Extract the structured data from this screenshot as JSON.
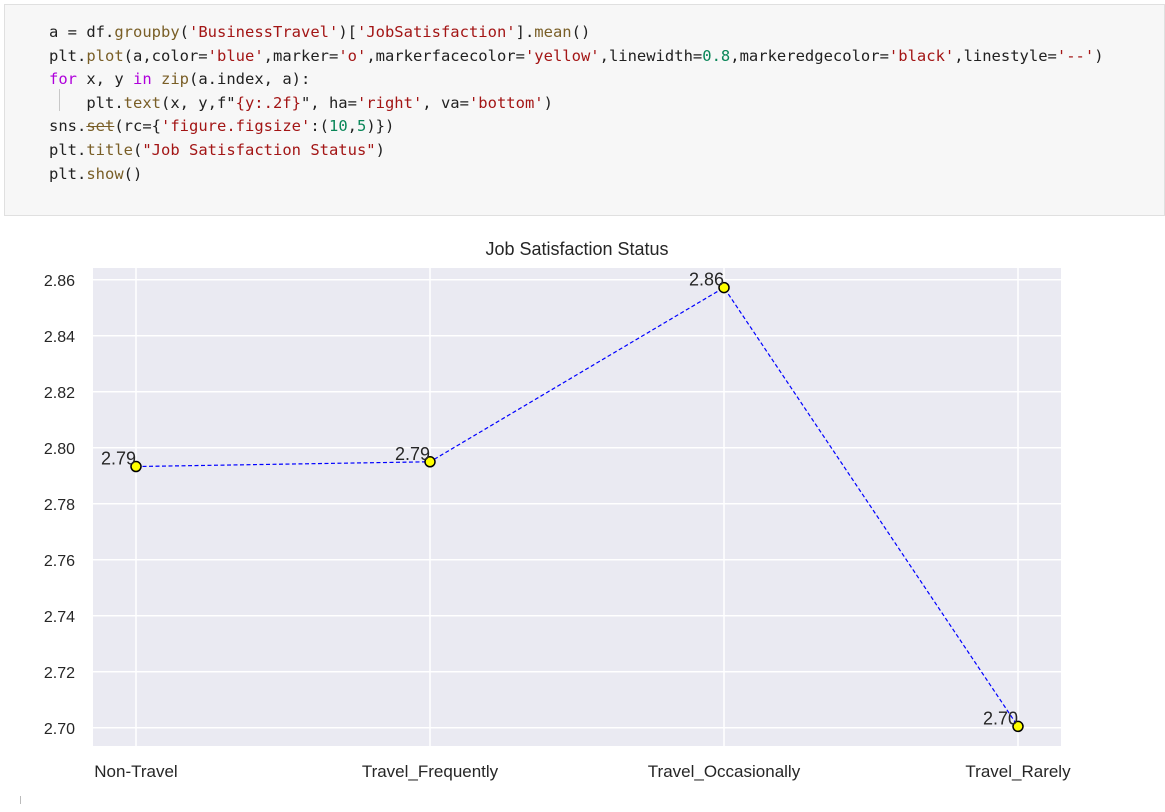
{
  "code_cell": {
    "lines": [
      [
        {
          "t": "a = df.",
          "c": ""
        },
        {
          "t": "groupby",
          "c": "fn"
        },
        {
          "t": "(",
          "c": ""
        },
        {
          "t": "'BusinessTravel'",
          "c": "str"
        },
        {
          "t": ")[",
          "c": ""
        },
        {
          "t": "'JobSatisfaction'",
          "c": "str"
        },
        {
          "t": "].",
          "c": ""
        },
        {
          "t": "mean",
          "c": "fn"
        },
        {
          "t": "()",
          "c": ""
        }
      ],
      [
        {
          "t": "plt.",
          "c": ""
        },
        {
          "t": "plot",
          "c": "fn"
        },
        {
          "t": "(a,color=",
          "c": ""
        },
        {
          "t": "'blue'",
          "c": "str"
        },
        {
          "t": ",marker=",
          "c": ""
        },
        {
          "t": "'o'",
          "c": "str"
        },
        {
          "t": ",markerfacecolor=",
          "c": ""
        },
        {
          "t": "'yellow'",
          "c": "str"
        },
        {
          "t": ",linewidth=",
          "c": ""
        },
        {
          "t": "0.8",
          "c": "num"
        },
        {
          "t": ",markeredgecolor=",
          "c": ""
        },
        {
          "t": "'black'",
          "c": "str"
        },
        {
          "t": ",linestyle=",
          "c": ""
        },
        {
          "t": "'--'",
          "c": "str"
        },
        {
          "t": ")",
          "c": ""
        }
      ],
      [
        {
          "t": "for",
          "c": "kw"
        },
        {
          "t": " x, y ",
          "c": ""
        },
        {
          "t": "in",
          "c": "kw"
        },
        {
          "t": " ",
          "c": ""
        },
        {
          "t": "zip",
          "c": "fn"
        },
        {
          "t": "(a.index, a):",
          "c": ""
        }
      ],
      [
        {
          "t": "    plt.",
          "c": ""
        },
        {
          "t": "text",
          "c": "fn"
        },
        {
          "t": "(x, y,f\"",
          "c": ""
        },
        {
          "t": "{y:.2f}",
          "c": "str"
        },
        {
          "t": "\", ha=",
          "c": ""
        },
        {
          "t": "'right'",
          "c": "str"
        },
        {
          "t": ", va=",
          "c": ""
        },
        {
          "t": "'bottom'",
          "c": "str"
        },
        {
          "t": ")",
          "c": ""
        }
      ],
      [
        {
          "t": "sns.",
          "c": ""
        },
        {
          "t": "set",
          "c": "fn strike"
        },
        {
          "t": "(rc={",
          "c": ""
        },
        {
          "t": "'figure.figsize'",
          "c": "str"
        },
        {
          "t": ":(",
          "c": ""
        },
        {
          "t": "10",
          "c": "num"
        },
        {
          "t": ",",
          "c": ""
        },
        {
          "t": "5",
          "c": "num"
        },
        {
          "t": ")})",
          "c": ""
        }
      ],
      [
        {
          "t": "plt.",
          "c": ""
        },
        {
          "t": "title",
          "c": "fn"
        },
        {
          "t": "(",
          "c": ""
        },
        {
          "t": "\"Job Satisfaction Status\"",
          "c": "str"
        },
        {
          "t": ")",
          "c": ""
        }
      ],
      [
        {
          "t": "plt.",
          "c": ""
        },
        {
          "t": "show",
          "c": "fn"
        },
        {
          "t": "()",
          "c": ""
        }
      ]
    ]
  },
  "chart_data": {
    "type": "line",
    "title": "Job Satisfaction Status",
    "categories": [
      "Non-Travel",
      "Travel_Frequently",
      "Travel_Occasionally",
      "Travel_Rarely"
    ],
    "values": [
      2.7933,
      2.795,
      2.8572,
      2.7005
    ],
    "value_labels": [
      "2.79",
      "2.79",
      "2.86",
      "2.70"
    ],
    "yticks": [
      "2.70",
      "2.72",
      "2.74",
      "2.76",
      "2.78",
      "2.80",
      "2.82",
      "2.84",
      "2.86"
    ],
    "ylim": [
      2.6935,
      2.8642
    ],
    "xlabel": "",
    "ylabel": "",
    "grid": true,
    "line_color": "#0000ff",
    "marker_face": "#ffff00",
    "marker_edge": "#000000",
    "plot_bg": "#eaeaf2"
  }
}
